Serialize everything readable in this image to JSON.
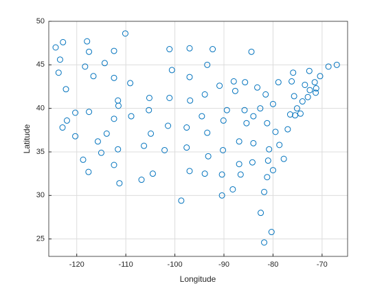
{
  "chart_data": {
    "type": "scatter",
    "x_label": "Longitude",
    "y_label": "Latitude",
    "color": "#0072bd",
    "grid": true,
    "xlim": [
      -125.7,
      -64.8
    ],
    "ylim": [
      23,
      50
    ],
    "xticks": [
      -120,
      -110,
      -100,
      -90,
      -80,
      -70
    ],
    "yticks": [
      25,
      30,
      35,
      40,
      45,
      50
    ],
    "x": [
      -124.3,
      -122.8,
      -117.9,
      -110.1,
      -123.4,
      -117.5,
      -112.4,
      -101.1,
      -97.0,
      -92.3,
      -84.4,
      -123.7,
      -118.3,
      -114.3,
      -116.6,
      -112.4,
      -109.1,
      -100.6,
      -93.4,
      -97.0,
      -122.2,
      -90.9,
      -88.0,
      -85.7,
      -87.7,
      -105.2,
      -101.1,
      -93.9,
      -96.9,
      -111.6,
      -111.5,
      -83.2,
      -81.5,
      -78.9,
      -75.9,
      -76.2,
      -72.6,
      -73.5,
      -71.5,
      -70.4,
      -68.7,
      -67.0,
      -72.5,
      -71.2,
      -71.3,
      -72.9,
      -74.0,
      -75.7,
      -75.1,
      -74.4,
      -76.5,
      -75.5,
      -80.0,
      -120.3,
      -117.5,
      -122.0,
      -122.9,
      -105.3,
      -112.4,
      -108.9,
      -94.5,
      -89.4,
      -90.1,
      -85.8,
      -85.4,
      -84.0,
      -82.6,
      -81.2,
      -79.5,
      -77.0,
      -120.3,
      -113.9,
      -104.9,
      -101.4,
      -97.6,
      -93.4,
      -86.9,
      -84.0,
      -78.7,
      -115.7,
      -115.0,
      -106.3,
      -111.6,
      -102.1,
      -97.6,
      -90.2,
      -80.8,
      -118.7,
      -112.4,
      -93.2,
      -86.9,
      -84.2,
      -81.0,
      -77.8,
      -117.6,
      -104.5,
      -97.0,
      -93.9,
      -90.4,
      -86.6,
      -81.2,
      -80.0,
      -111.3,
      -106.8,
      -88.2,
      -81.8,
      -90.4,
      -98.7,
      -82.5,
      -80.3,
      -81.8
    ],
    "values": [
      47.0,
      47.6,
      47.7,
      48.6,
      45.6,
      46.5,
      46.6,
      46.8,
      46.9,
      46.8,
      46.5,
      44.1,
      44.8,
      45.2,
      43.7,
      43.5,
      42.9,
      44.4,
      45.0,
      43.6,
      42.2,
      42.6,
      43.1,
      43.0,
      42.0,
      41.2,
      41.2,
      41.6,
      40.9,
      40.9,
      40.3,
      42.4,
      41.6,
      43.0,
      44.1,
      43.1,
      44.3,
      42.7,
      43.0,
      43.7,
      44.8,
      45.0,
      42.1,
      42.3,
      41.8,
      41.3,
      40.8,
      41.4,
      40.0,
      39.4,
      39.3,
      39.2,
      40.5,
      39.5,
      39.6,
      38.6,
      37.8,
      39.8,
      38.8,
      39.1,
      39.1,
      39.8,
      38.6,
      39.8,
      38.3,
      39.1,
      40.0,
      38.3,
      37.3,
      37.6,
      36.8,
      37.1,
      37.1,
      38.0,
      37.8,
      37.2,
      36.2,
      36.0,
      35.8,
      36.2,
      34.9,
      35.7,
      35.3,
      35.2,
      35.5,
      35.2,
      35.3,
      34.1,
      33.5,
      34.5,
      33.6,
      33.8,
      34.0,
      34.2,
      32.7,
      32.5,
      32.8,
      32.5,
      32.4,
      32.4,
      32.1,
      32.9,
      31.4,
      31.8,
      30.7,
      30.4,
      30.0,
      29.4,
      28.0,
      25.8,
      24.6
    ]
  }
}
